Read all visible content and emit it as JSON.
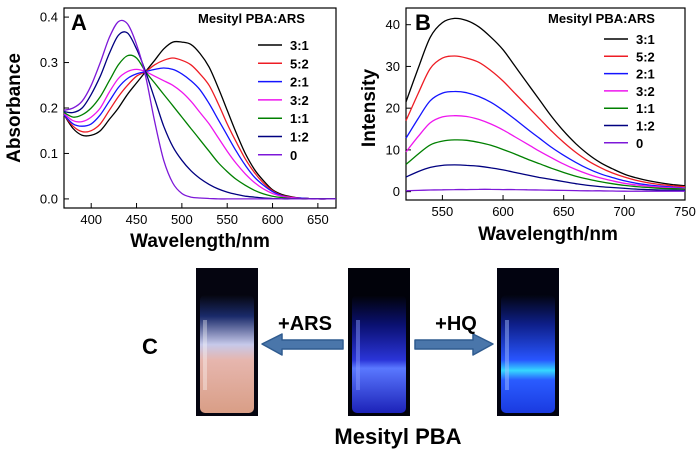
{
  "panel_c_letter": "C",
  "photos": {
    "left_label": "+ARS",
    "right_label": "+HQ",
    "caption": "Mesityl PBA"
  },
  "colors": {
    "series": [
      "#000000",
      "#ee1c24",
      "#1414ff",
      "#ee16ee",
      "#008000",
      "#000080",
      "#7d18d8"
    ],
    "arrow": "#4a76aa"
  },
  "chart_data": [
    {
      "type": "line",
      "panel_label": "A",
      "legend_title": "Mesityl PBA:ARS",
      "xlabel": "Wavelength/nm",
      "ylabel": "Absorbance",
      "xlim": [
        370,
        670
      ],
      "ylim": [
        -0.02,
        0.42
      ],
      "xticks": [
        400,
        450,
        500,
        550,
        600,
        650
      ],
      "yticks": [
        0.0,
        0.1,
        0.2,
        0.3,
        0.4
      ],
      "x": [
        370,
        380,
        390,
        400,
        410,
        420,
        430,
        440,
        450,
        460,
        470,
        480,
        490,
        500,
        510,
        520,
        530,
        540,
        550,
        560,
        570,
        580,
        590,
        600,
        610,
        620,
        630,
        640,
        650,
        660,
        670
      ],
      "series": [
        {
          "name": "3:1",
          "values": [
            0.185,
            0.155,
            0.14,
            0.14,
            0.15,
            0.175,
            0.2,
            0.23,
            0.255,
            0.28,
            0.305,
            0.33,
            0.345,
            0.345,
            0.34,
            0.32,
            0.29,
            0.245,
            0.195,
            0.145,
            0.1,
            0.065,
            0.04,
            0.02,
            0.01,
            0.005,
            0.002,
            0.001,
            0.0,
            0.0,
            0.0
          ]
        },
        {
          "name": "5:2",
          "values": [
            0.185,
            0.16,
            0.148,
            0.15,
            0.165,
            0.195,
            0.225,
            0.25,
            0.27,
            0.28,
            0.295,
            0.305,
            0.31,
            0.305,
            0.295,
            0.275,
            0.25,
            0.21,
            0.165,
            0.125,
            0.088,
            0.058,
            0.035,
            0.018,
            0.008,
            0.004,
            0.002,
            0.001,
            0.0,
            0.0,
            0.0
          ]
        },
        {
          "name": "2:1",
          "values": [
            0.185,
            0.165,
            0.16,
            0.165,
            0.185,
            0.215,
            0.245,
            0.265,
            0.275,
            0.28,
            0.285,
            0.288,
            0.285,
            0.275,
            0.26,
            0.24,
            0.21,
            0.175,
            0.14,
            0.105,
            0.074,
            0.048,
            0.03,
            0.016,
            0.007,
            0.003,
            0.002,
            0.001,
            0.0,
            0.0,
            0.0
          ]
        },
        {
          "name": "3:2",
          "values": [
            0.188,
            0.172,
            0.17,
            0.18,
            0.2,
            0.235,
            0.265,
            0.28,
            0.285,
            0.28,
            0.27,
            0.26,
            0.25,
            0.235,
            0.215,
            0.19,
            0.165,
            0.135,
            0.105,
            0.078,
            0.055,
            0.036,
            0.022,
            0.012,
            0.006,
            0.003,
            0.001,
            0.0,
            0.0,
            0.0,
            0.0
          ]
        },
        {
          "name": "1:1",
          "values": [
            0.19,
            0.18,
            0.185,
            0.2,
            0.225,
            0.26,
            0.295,
            0.315,
            0.31,
            0.28,
            0.255,
            0.23,
            0.205,
            0.18,
            0.155,
            0.13,
            0.105,
            0.08,
            0.06,
            0.043,
            0.03,
            0.019,
            0.011,
            0.006,
            0.003,
            0.001,
            0.0,
            0.0,
            0.0,
            0.0,
            0.0
          ]
        },
        {
          "name": "1:2",
          "values": [
            0.192,
            0.19,
            0.2,
            0.23,
            0.27,
            0.32,
            0.36,
            0.365,
            0.33,
            0.28,
            0.22,
            0.16,
            0.115,
            0.085,
            0.062,
            0.045,
            0.032,
            0.022,
            0.015,
            0.01,
            0.006,
            0.004,
            0.002,
            0.001,
            0.0,
            0.0,
            0.0,
            0.0,
            0.0,
            0.0,
            0.0
          ]
        },
        {
          "name": "0",
          "values": [
            0.195,
            0.2,
            0.215,
            0.25,
            0.3,
            0.355,
            0.39,
            0.385,
            0.34,
            0.27,
            0.17,
            0.085,
            0.035,
            0.012,
            0.004,
            0.002,
            0.001,
            0.0,
            0.0,
            0.0,
            0.0,
            0.0,
            0.0,
            0.0,
            0.0,
            0.0,
            0.0,
            0.0,
            0.0,
            0.0,
            0.0
          ]
        }
      ]
    },
    {
      "type": "line",
      "panel_label": "B",
      "legend_title": "Mesityl PBA:ARS",
      "xlabel": "Wavelength/nm",
      "ylabel": "Intensity",
      "xlim": [
        520,
        750
      ],
      "ylim": [
        -2,
        44
      ],
      "xticks": [
        550,
        600,
        650,
        700,
        750
      ],
      "yticks": [
        0,
        10,
        20,
        30,
        40
      ],
      "x": [
        520,
        530,
        540,
        550,
        560,
        570,
        580,
        590,
        600,
        610,
        620,
        630,
        640,
        650,
        660,
        670,
        680,
        690,
        700,
        710,
        720,
        730,
        740,
        750
      ],
      "series": [
        {
          "name": "3:1",
          "values": [
            21.5,
            29.5,
            37,
            40.5,
            41.5,
            41,
            39.5,
            37,
            34,
            30,
            26,
            22,
            18,
            14.5,
            11.5,
            9,
            7,
            5.5,
            4.2,
            3.3,
            2.6,
            2.1,
            1.7,
            1.4
          ]
        },
        {
          "name": "5:2",
          "values": [
            17,
            23.5,
            29.5,
            32,
            32.5,
            32,
            31,
            29,
            26.5,
            23.5,
            20.5,
            17.5,
            14.5,
            11.8,
            9.4,
            7.4,
            5.8,
            4.5,
            3.5,
            2.7,
            2.1,
            1.7,
            1.4,
            1.2
          ]
        },
        {
          "name": "2:1",
          "values": [
            12.8,
            17.5,
            21.8,
            23.6,
            24,
            23.7,
            22.8,
            21.4,
            19.5,
            17.3,
            15,
            12.8,
            10.6,
            8.7,
            7,
            5.5,
            4.3,
            3.4,
            2.6,
            2,
            1.6,
            1.3,
            1.1,
            0.9
          ]
        },
        {
          "name": "3:2",
          "values": [
            9.5,
            13.2,
            16.5,
            17.9,
            18.2,
            18,
            17.3,
            16.2,
            14.8,
            13.1,
            11.4,
            9.7,
            8.1,
            6.6,
            5.3,
            4.2,
            3.3,
            2.6,
            2,
            1.6,
            1.3,
            1.1,
            0.9,
            0.8
          ]
        },
        {
          "name": "1:1",
          "values": [
            6.5,
            9,
            11.2,
            12.1,
            12.4,
            12.3,
            11.8,
            11.1,
            10.1,
            9,
            7.8,
            6.7,
            5.6,
            4.6,
            3.7,
            3,
            2.4,
            1.9,
            1.5,
            1.2,
            1,
            0.8,
            0.7,
            0.6
          ]
        },
        {
          "name": "1:2",
          "values": [
            3.5,
            4.8,
            5.8,
            6.3,
            6.4,
            6.3,
            6.1,
            5.7,
            5.2,
            4.6,
            4,
            3.4,
            2.9,
            2.4,
            1.9,
            1.5,
            1.2,
            1,
            0.8,
            0.6,
            0.5,
            0.4,
            0.35,
            0.3
          ]
        },
        {
          "name": "0",
          "values": [
            0.2,
            0.3,
            0.4,
            0.45,
            0.5,
            0.5,
            0.55,
            0.55,
            0.5,
            0.5,
            0.45,
            0.4,
            0.35,
            0.3,
            0.25,
            0.2,
            0.2,
            0.15,
            0.1,
            0.1,
            0.1,
            0.1,
            0.1,
            0.1
          ]
        }
      ]
    }
  ]
}
